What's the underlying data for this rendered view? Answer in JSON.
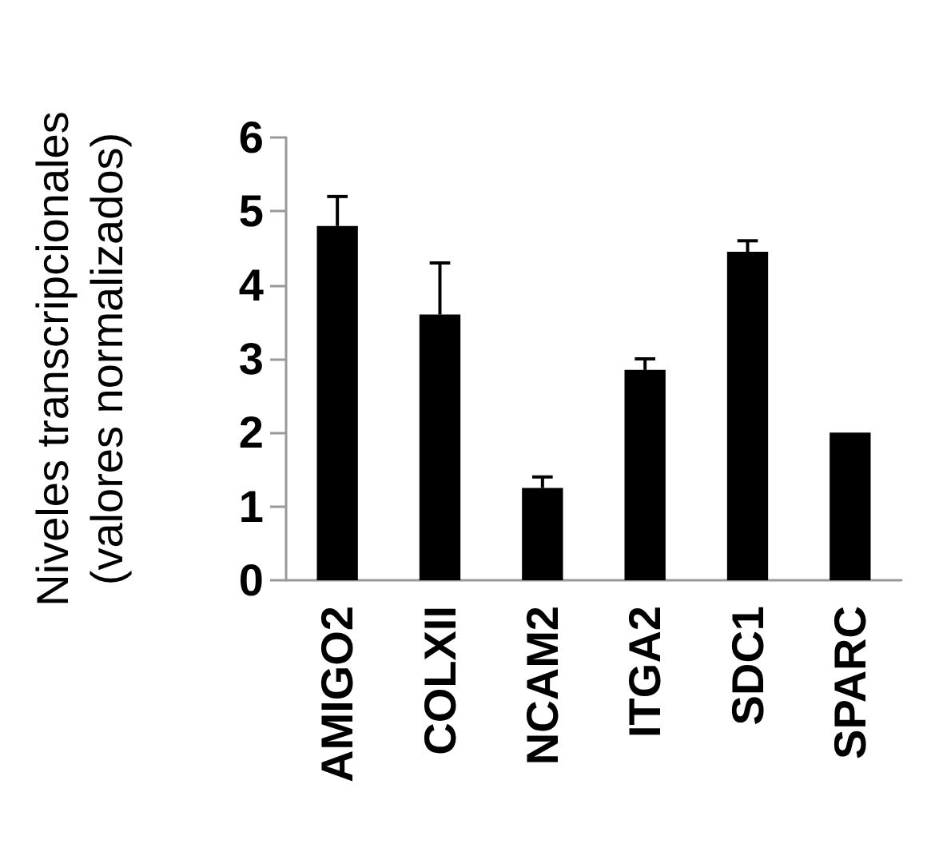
{
  "chart_data": {
    "type": "bar",
    "ylabel": "Niveles transcripcionales\n(valores normalizados)",
    "categories": [
      "AMIGO2",
      "COLXII",
      "NCAM2",
      "ITGA2",
      "SDC1",
      "SPARC"
    ],
    "values": [
      4.8,
      3.6,
      1.25,
      2.85,
      4.45,
      2.0
    ],
    "errors": [
      [
        4.8,
        5.2
      ],
      [
        3.6,
        4.3
      ],
      [
        1.25,
        1.4
      ],
      [
        2.85,
        3.0
      ],
      [
        4.45,
        4.6
      ],
      null
    ],
    "color": "#000000",
    "ylim": [
      0,
      6
    ],
    "yticks": [
      0,
      1,
      2,
      3,
      4,
      5,
      6
    ],
    "grid": false
  }
}
